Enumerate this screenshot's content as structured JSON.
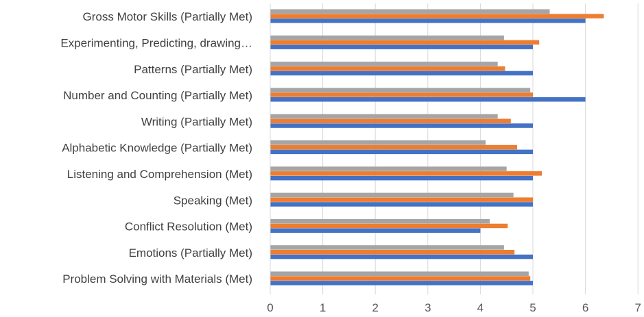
{
  "chart_data": {
    "type": "bar",
    "orientation": "horizontal",
    "categories": [
      "Problem Solving with Materials (Met)",
      "Emotions (Partially Met)",
      "Conflict Resolution (Met)",
      "Speaking (Met)",
      "Listening and Comprehension (Met)",
      "Alphabetic Knowledge (Partially Met)",
      "Writing (Partially Met)",
      "Number and Counting (Partially Met)",
      "Patterns (Partially Met)",
      "Experimenting, Predicting, drawing…",
      "Gross Motor Skills (Partially Met)"
    ],
    "series": [
      {
        "color": "#4472C4",
        "values": [
          5.0,
          5.0,
          4.0,
          5.0,
          5.0,
          5.0,
          5.0,
          6.0,
          5.0,
          5.0,
          6.0
        ]
      },
      {
        "color": "#ED7D31",
        "values": [
          4.95,
          4.65,
          4.52,
          5.0,
          5.17,
          4.7,
          4.58,
          5.0,
          4.47,
          5.12,
          6.35
        ]
      },
      {
        "color": "#A5A5A5",
        "values": [
          4.92,
          4.45,
          4.18,
          4.63,
          4.5,
          4.1,
          4.33,
          4.95,
          4.33,
          4.45,
          5.32
        ]
      }
    ],
    "xlim": [
      0,
      7
    ],
    "xticks": [
      "0",
      "1",
      "2",
      "3",
      "4",
      "5",
      "6",
      "7"
    ],
    "title": "",
    "xlabel": "",
    "ylabel": "",
    "grid": "vertical",
    "legend": "none"
  }
}
